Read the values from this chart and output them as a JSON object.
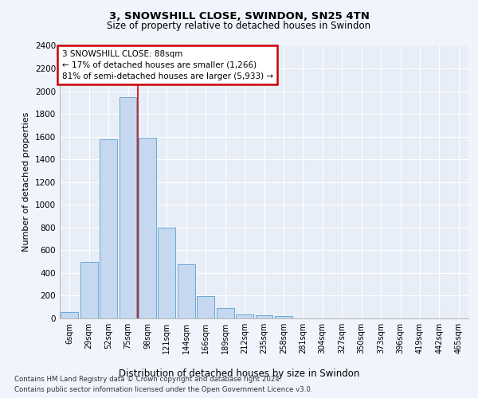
{
  "title1": "3, SNOWSHILL CLOSE, SWINDON, SN25 4TN",
  "title2": "Size of property relative to detached houses in Swindon",
  "xlabel": "Distribution of detached houses by size in Swindon",
  "ylabel": "Number of detached properties",
  "footnote1": "Contains HM Land Registry data © Crown copyright and database right 2024.",
  "footnote2": "Contains public sector information licensed under the Open Government Licence v3.0.",
  "annotation_line1": "3 SNOWSHILL CLOSE: 88sqm",
  "annotation_line2": "← 17% of detached houses are smaller (1,266)",
  "annotation_line3": "81% of semi-detached houses are larger (5,933) →",
  "categories": [
    "6sqm",
    "29sqm",
    "52sqm",
    "75sqm",
    "98sqm",
    "121sqm",
    "144sqm",
    "166sqm",
    "189sqm",
    "212sqm",
    "235sqm",
    "258sqm",
    "281sqm",
    "304sqm",
    "327sqm",
    "350sqm",
    "373sqm",
    "396sqm",
    "419sqm",
    "442sqm",
    "465sqm"
  ],
  "values": [
    55,
    500,
    1580,
    1950,
    1590,
    800,
    480,
    195,
    90,
    35,
    25,
    20,
    0,
    0,
    0,
    0,
    0,
    0,
    0,
    0,
    0
  ],
  "bar_color": "#c5d8f0",
  "bar_edge_color": "#6aaad4",
  "ylim": [
    0,
    2400
  ],
  "yticks": [
    0,
    200,
    400,
    600,
    800,
    1000,
    1200,
    1400,
    1600,
    1800,
    2000,
    2200,
    2400
  ],
  "plot_background": "#e8eef8",
  "grid_color": "#ffffff",
  "annotation_box_color": "#ffffff",
  "annotation_box_edge": "#cc0000",
  "vline_x_index": 3.5,
  "vline_color": "#cc0000",
  "fig_bg": "#f0f4fc"
}
